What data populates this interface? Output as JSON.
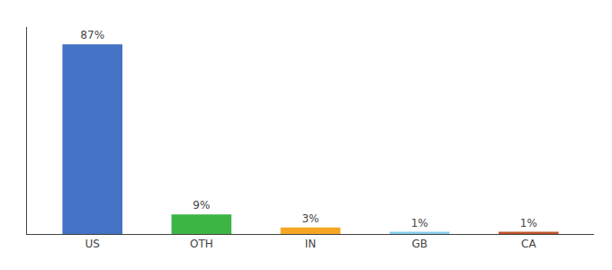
{
  "chart_data": {
    "type": "bar",
    "categories": [
      "US",
      "OTH",
      "IN",
      "GB",
      "CA"
    ],
    "values": [
      87,
      9,
      3,
      1,
      1
    ],
    "value_labels": [
      "87%",
      "9%",
      "3%",
      "1%",
      "1%"
    ],
    "colors": [
      "#4472c4",
      "#3cb544",
      "#f5a623",
      "#87ceeb",
      "#c0522a"
    ],
    "ylim": [
      0,
      95
    ],
    "grid": false,
    "data_labels": true,
    "tick_labels": "x"
  }
}
